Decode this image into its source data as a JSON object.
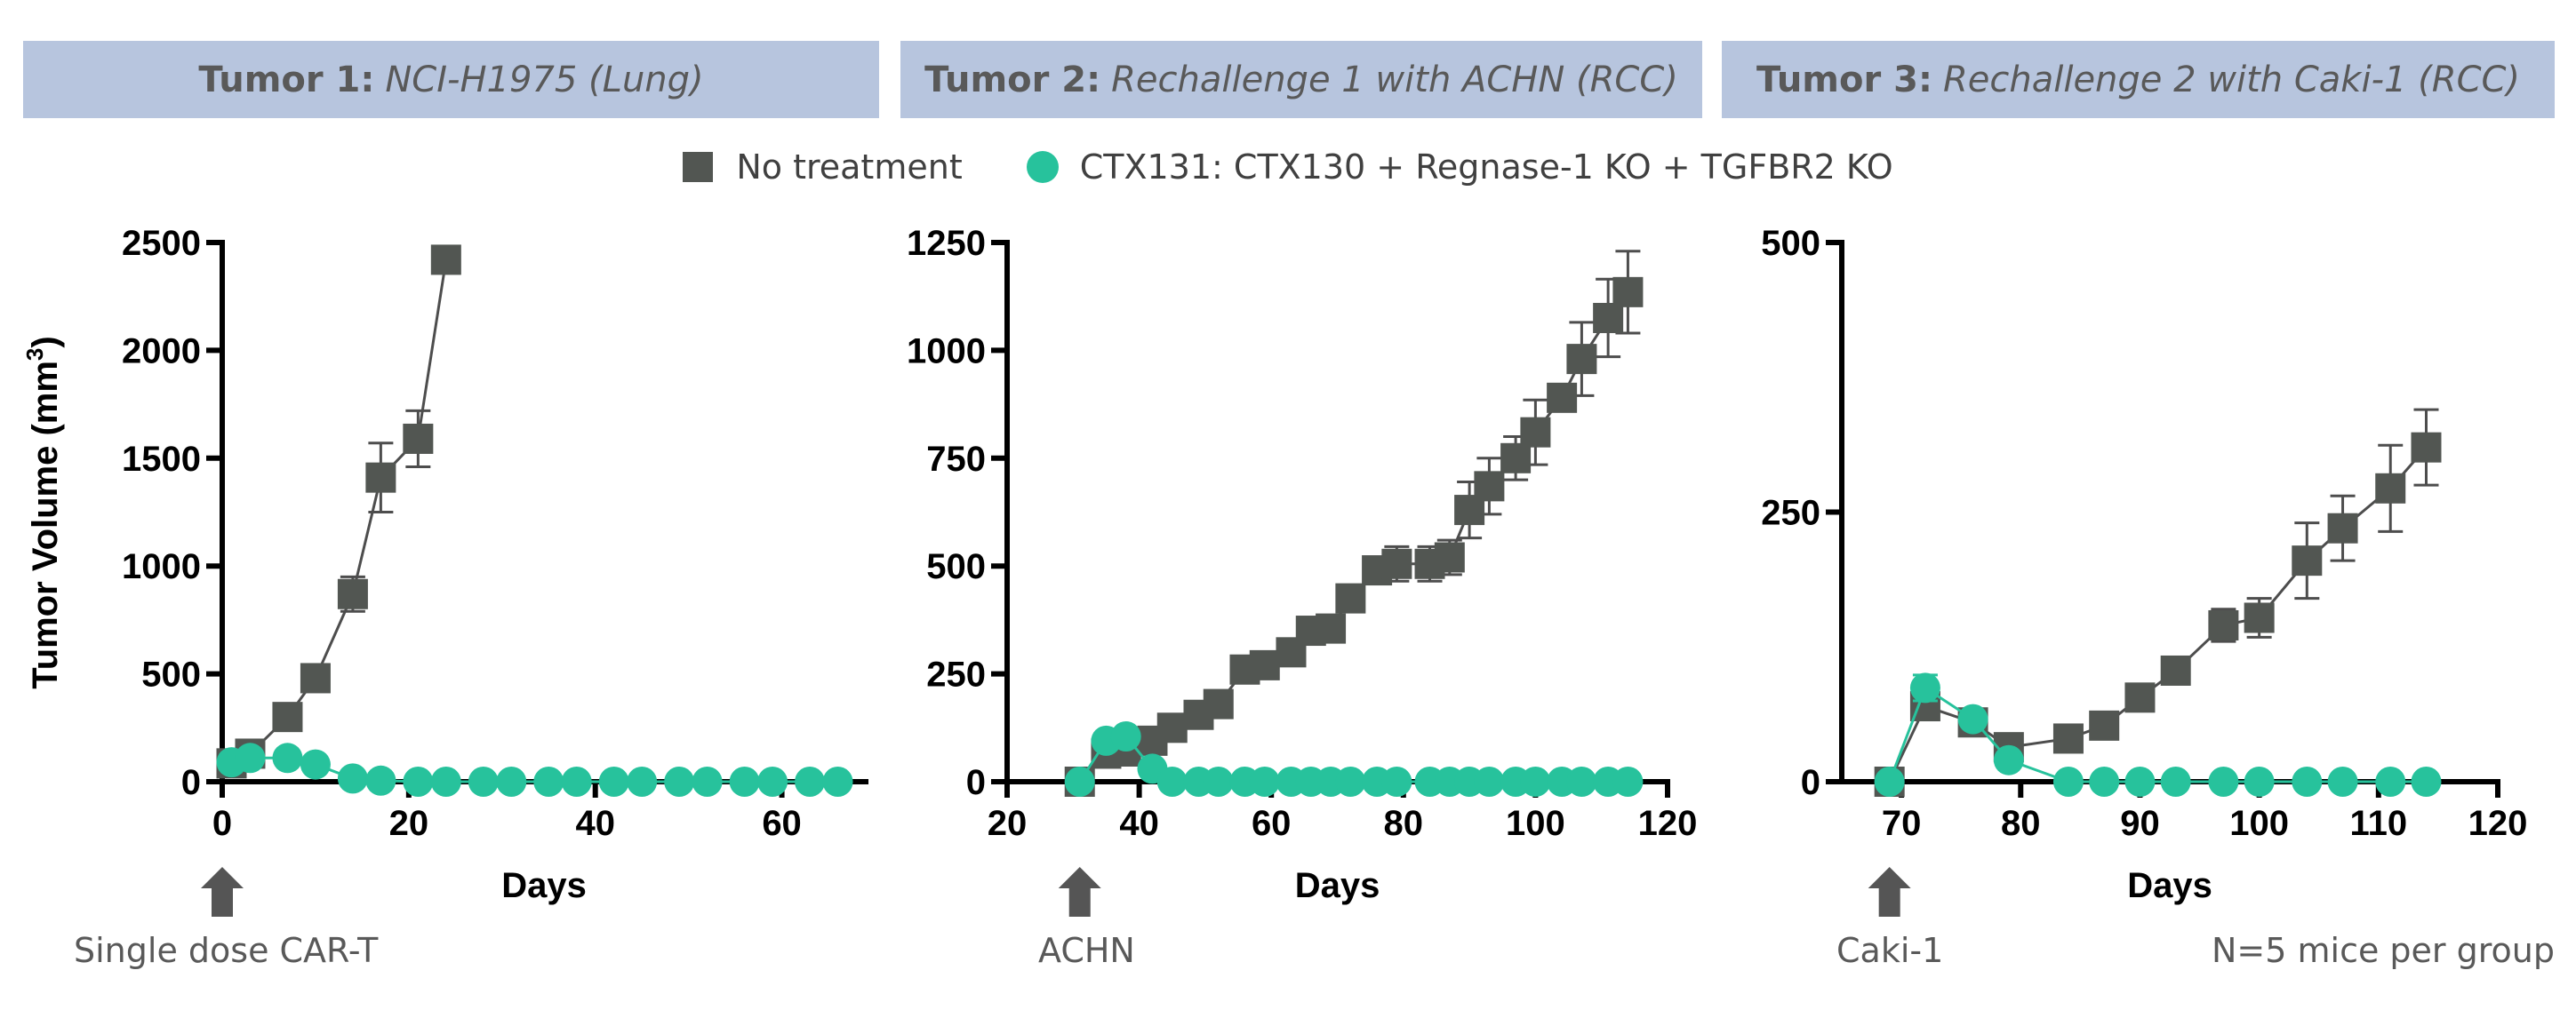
{
  "headers": [
    {
      "bold": "Tumor 1:",
      "italic": "NCI-H1975 (Lung)"
    },
    {
      "bold": "Tumor 2:",
      "italic": "Rechallenge 1 with ACHN (RCC)"
    },
    {
      "bold": "Tumor 3:",
      "italic": "Rechallenge 2 with Caki-1 (RCC)"
    }
  ],
  "legend": [
    {
      "label": "No treatment",
      "marker": "square",
      "color": "#525652"
    },
    {
      "label": "CTX131: CTX130 + Regnase-1 KO + TGFBR2 KO",
      "marker": "circle",
      "color": "#27c29c"
    }
  ],
  "annotations": {
    "arrows": [
      "Single dose CAR-T",
      "ACHN",
      "Caki-1"
    ],
    "note": "N=5 mice per group"
  },
  "chart_data": [
    {
      "type": "line",
      "title": "Tumor 1: NCI-H1975 (Lung)",
      "xlabel": "Days",
      "ylabel": "Tumor Volume (mm3)",
      "xlim": [
        0,
        69
      ],
      "ylim": [
        0,
        2500
      ],
      "xticks": [
        0,
        20,
        40,
        60
      ],
      "yticks": [
        0,
        500,
        1000,
        1500,
        2000,
        2500
      ],
      "arrow_day": 0,
      "series": [
        {
          "name": "No treatment",
          "x": [
            1,
            3,
            7,
            10,
            14,
            17,
            21,
            24
          ],
          "y": [
            85,
            130,
            300,
            480,
            870,
            1410,
            1590,
            2420
          ],
          "err": [
            10,
            15,
            20,
            50,
            80,
            160,
            130,
            40
          ]
        },
        {
          "name": "CTX131",
          "x": [
            1,
            3,
            7,
            10,
            14,
            17,
            21,
            24,
            28,
            31,
            35,
            38,
            42,
            45,
            49,
            52,
            56,
            59,
            63,
            66
          ],
          "y": [
            90,
            110,
            110,
            80,
            15,
            5,
            0,
            0,
            0,
            0,
            0,
            0,
            0,
            0,
            0,
            0,
            0,
            0,
            0,
            0
          ],
          "err": []
        }
      ]
    },
    {
      "type": "line",
      "title": "Tumor 2: Rechallenge 1 with ACHN (RCC)",
      "xlabel": "Days",
      "ylabel": "",
      "xlim": [
        20,
        120
      ],
      "ylim": [
        0,
        1250
      ],
      "xticks": [
        20,
        40,
        60,
        80,
        100,
        120
      ],
      "yticks": [
        0,
        250,
        500,
        750,
        1000,
        1250
      ],
      "arrow_day": 31,
      "series": [
        {
          "name": "No treatment",
          "x": [
            31,
            35,
            38,
            42,
            45,
            49,
            52,
            56,
            59,
            63,
            66,
            69,
            72,
            76,
            79,
            84,
            87,
            90,
            93,
            97,
            100,
            104,
            107,
            111,
            114
          ],
          "y": [
            0,
            65,
            70,
            95,
            125,
            155,
            180,
            260,
            270,
            300,
            350,
            355,
            425,
            490,
            505,
            505,
            520,
            630,
            685,
            750,
            810,
            890,
            980,
            1075,
            1135
          ],
          "err": [
            0,
            5,
            5,
            5,
            5,
            5,
            5,
            5,
            5,
            5,
            5,
            5,
            5,
            10,
            40,
            40,
            40,
            65,
            65,
            50,
            75,
            25,
            85,
            90,
            95
          ]
        },
        {
          "name": "CTX131",
          "x": [
            31,
            35,
            38,
            42,
            45,
            49,
            52,
            56,
            59,
            63,
            66,
            69,
            72,
            76,
            79,
            84,
            87,
            90,
            93,
            97,
            100,
            104,
            107,
            111,
            114
          ],
          "y": [
            0,
            95,
            105,
            30,
            0,
            0,
            0,
            0,
            0,
            0,
            0,
            0,
            0,
            0,
            0,
            0,
            0,
            0,
            0,
            0,
            0,
            0,
            0,
            0,
            0
          ],
          "err": []
        }
      ]
    },
    {
      "type": "line",
      "title": "Tumor 3: Rechallenge 2 with Caki-1 (RCC)",
      "xlabel": "Days",
      "ylabel": "",
      "xlim": [
        65,
        120
      ],
      "ylim": [
        0,
        500
      ],
      "xticks": [
        70,
        80,
        90,
        100,
        110,
        120
      ],
      "yticks": [
        0,
        250,
        500
      ],
      "arrow_day": 69,
      "series": [
        {
          "name": "No treatment",
          "x": [
            69,
            72,
            76,
            79,
            84,
            87,
            90,
            93,
            97,
            100,
            104,
            107,
            111,
            114
          ],
          "y": [
            0,
            70,
            55,
            32,
            40,
            52,
            78,
            103,
            145,
            152,
            205,
            235,
            272,
            310
          ],
          "err": [
            0,
            5,
            5,
            3,
            3,
            3,
            3,
            3,
            15,
            18,
            35,
            30,
            40,
            35
          ]
        },
        {
          "name": "CTX131",
          "x": [
            69,
            72,
            76,
            79,
            84,
            87,
            90,
            93,
            97,
            100,
            104,
            107,
            111,
            114
          ],
          "y": [
            0,
            87,
            58,
            20,
            0,
            0,
            0,
            0,
            0,
            0,
            0,
            0,
            0,
            0
          ],
          "err": [
            0,
            12,
            6,
            0,
            0,
            0,
            0,
            0,
            0,
            0,
            0,
            0,
            0,
            0
          ]
        }
      ]
    }
  ]
}
